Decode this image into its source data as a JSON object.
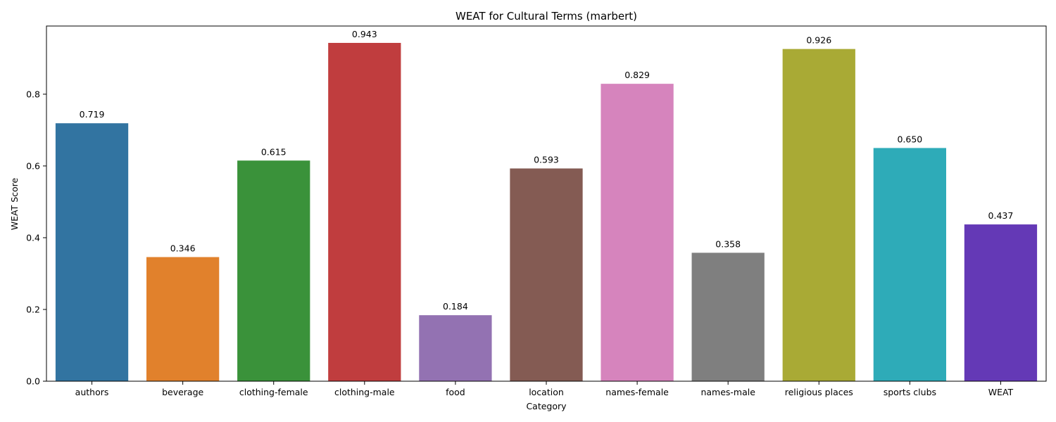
{
  "chart_data": {
    "type": "bar",
    "title": "WEAT for Cultural Terms (marbert)",
    "xlabel": "Category",
    "ylabel": "WEAT Score",
    "ylim": [
      0,
      0.99
    ],
    "yticks": [
      "0.0",
      "0.2",
      "0.4",
      "0.6",
      "0.8"
    ],
    "grid": false,
    "categories": [
      "authors",
      "beverage",
      "clothing-female",
      "clothing-male",
      "food",
      "location",
      "names-female",
      "names-male",
      "religious places",
      "sports clubs",
      "WEAT"
    ],
    "values": [
      0.719,
      0.346,
      0.615,
      0.943,
      0.184,
      0.593,
      0.829,
      0.358,
      0.926,
      0.65,
      0.437
    ],
    "value_labels": [
      "0.719",
      "0.346",
      "0.615",
      "0.943",
      "0.184",
      "0.593",
      "0.829",
      "0.358",
      "0.926",
      "0.650",
      "0.437"
    ],
    "colors": [
      "#3274a1",
      "#e1812c",
      "#3a923a",
      "#c03d3e",
      "#9372b2",
      "#845b53",
      "#d684bd",
      "#7f7f7f",
      "#a9aa35",
      "#2eabb8",
      "#6439b6"
    ]
  }
}
